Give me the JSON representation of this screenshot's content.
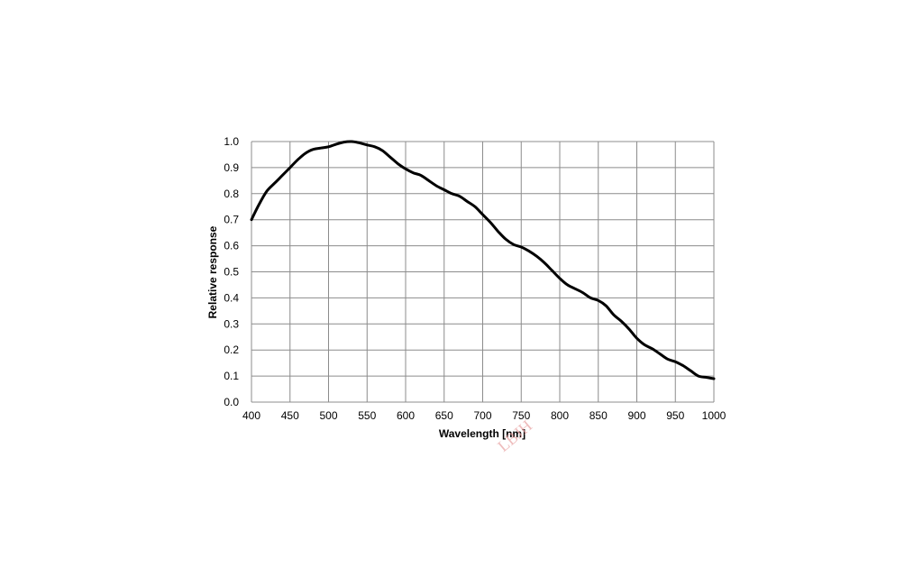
{
  "chart_data": {
    "type": "line",
    "title": "",
    "xlabel": "Wavelength [nm]",
    "ylabel": "Relative response",
    "xlim": [
      400,
      1000
    ],
    "ylim": [
      0.0,
      1.0
    ],
    "x_ticks": [
      "400",
      "450",
      "500",
      "550",
      "600",
      "650",
      "700",
      "750",
      "800",
      "850",
      "900",
      "950",
      "1000"
    ],
    "y_ticks": [
      "0.0",
      "0.1",
      "0.2",
      "0.3",
      "0.4",
      "0.5",
      "0.6",
      "0.7",
      "0.8",
      "0.9",
      "1.0"
    ],
    "grid": true,
    "legend": "none",
    "series": [
      {
        "color": "#000000",
        "x": [
          400,
          410,
          420,
          430,
          440,
          450,
          460,
          470,
          480,
          490,
          500,
          510,
          520,
          530,
          540,
          550,
          560,
          570,
          580,
          590,
          600,
          610,
          620,
          630,
          640,
          650,
          660,
          670,
          680,
          690,
          700,
          710,
          720,
          730,
          740,
          750,
          760,
          770,
          780,
          790,
          800,
          810,
          820,
          830,
          840,
          850,
          860,
          870,
          880,
          890,
          900,
          910,
          920,
          930,
          940,
          950,
          960,
          970,
          980,
          990,
          1000
        ],
        "y": [
          0.7,
          0.76,
          0.81,
          0.84,
          0.87,
          0.9,
          0.93,
          0.955,
          0.97,
          0.975,
          0.98,
          0.99,
          0.998,
          1.0,
          0.995,
          0.987,
          0.98,
          0.965,
          0.94,
          0.915,
          0.895,
          0.88,
          0.87,
          0.85,
          0.83,
          0.815,
          0.8,
          0.79,
          0.77,
          0.75,
          0.72,
          0.69,
          0.655,
          0.625,
          0.605,
          0.595,
          0.58,
          0.56,
          0.535,
          0.505,
          0.475,
          0.45,
          0.435,
          0.42,
          0.4,
          0.39,
          0.37,
          0.335,
          0.31,
          0.28,
          0.245,
          0.22,
          0.205,
          0.185,
          0.165,
          0.155,
          0.14,
          0.12,
          0.1,
          0.095,
          0.09
        ]
      }
    ]
  },
  "watermark": "LBJH"
}
